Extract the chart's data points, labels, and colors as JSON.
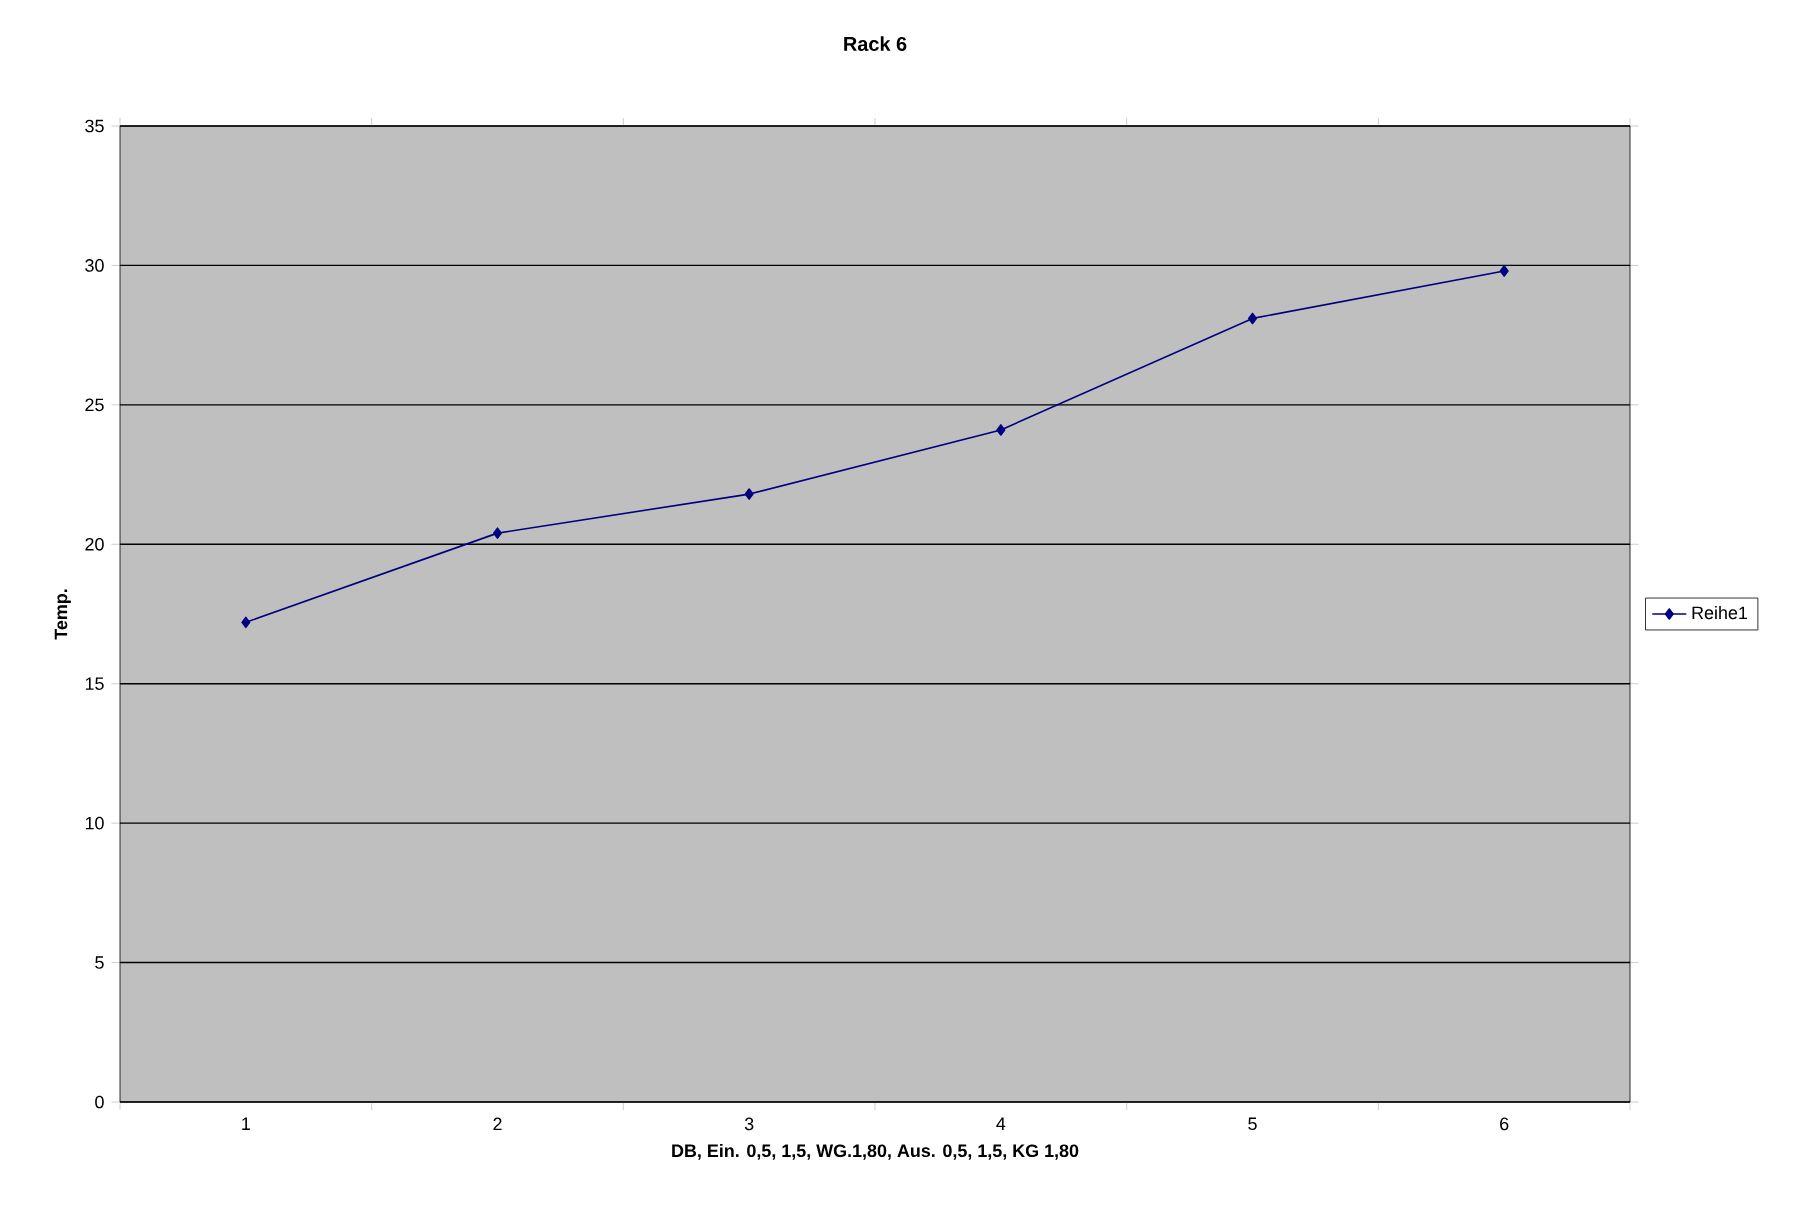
{
  "chart_data": {
    "type": "line",
    "title": "Rack 6",
    "xlabel": "DB, Ein. 0,5, 1,5, WG.1,80, Aus. 0,5, 1,5, KG 1,80",
    "ylabel": "Temp.",
    "categories": [
      "1",
      "2",
      "3",
      "4",
      "5",
      "6"
    ],
    "series": [
      {
        "name": "Reihe1",
        "color": "#000080",
        "values": [
          17.2,
          20.4,
          21.8,
          24.1,
          28.1,
          29.8
        ]
      }
    ],
    "ylim": [
      0,
      35
    ],
    "yticks": [
      0,
      5,
      10,
      15,
      20,
      25,
      30,
      35
    ],
    "grid": "y",
    "legend": "right",
    "marker": "diamond",
    "line_style": "solid"
  }
}
